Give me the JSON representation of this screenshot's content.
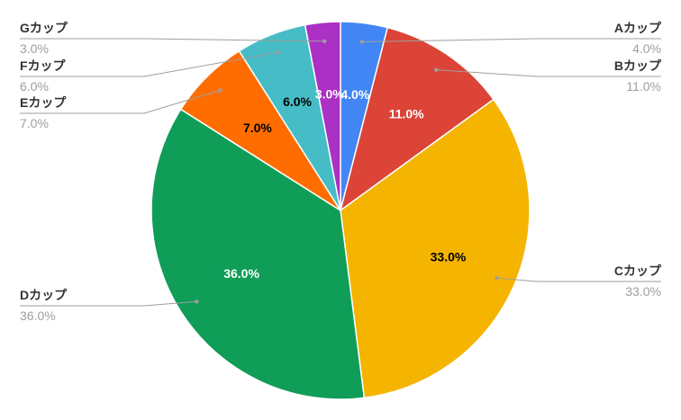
{
  "chart_data": {
    "type": "pie",
    "title": "",
    "slices": [
      {
        "label": "Aカップ",
        "value": 4.0,
        "pct_text": "4.0%",
        "color": "#4285f4",
        "text_color": "#ffffff",
        "side": "right"
      },
      {
        "label": "Bカップ",
        "value": 11.0,
        "pct_text": "11.0%",
        "color": "#db4437",
        "text_color": "#ffffff",
        "side": "right"
      },
      {
        "label": "Cカップ",
        "value": 33.0,
        "pct_text": "33.0%",
        "color": "#f4b400",
        "text_color": "#000000",
        "side": "right"
      },
      {
        "label": "Dカップ",
        "value": 36.0,
        "pct_text": "36.0%",
        "color": "#0f9d58",
        "text_color": "#ffffff",
        "side": "left"
      },
      {
        "label": "Eカップ",
        "value": 7.0,
        "pct_text": "7.0%",
        "color": "#ff6d00",
        "text_color": "#000000",
        "side": "left"
      },
      {
        "label": "Fカップ",
        "value": 6.0,
        "pct_text": "6.0%",
        "color": "#46bdc6",
        "text_color": "#000000",
        "side": "left"
      },
      {
        "label": "Gカップ",
        "value": 3.0,
        "pct_text": "3.0%",
        "color": "#ab30c4",
        "text_color": "#ffffff",
        "side": "left"
      }
    ],
    "legend": "callout-labels"
  }
}
